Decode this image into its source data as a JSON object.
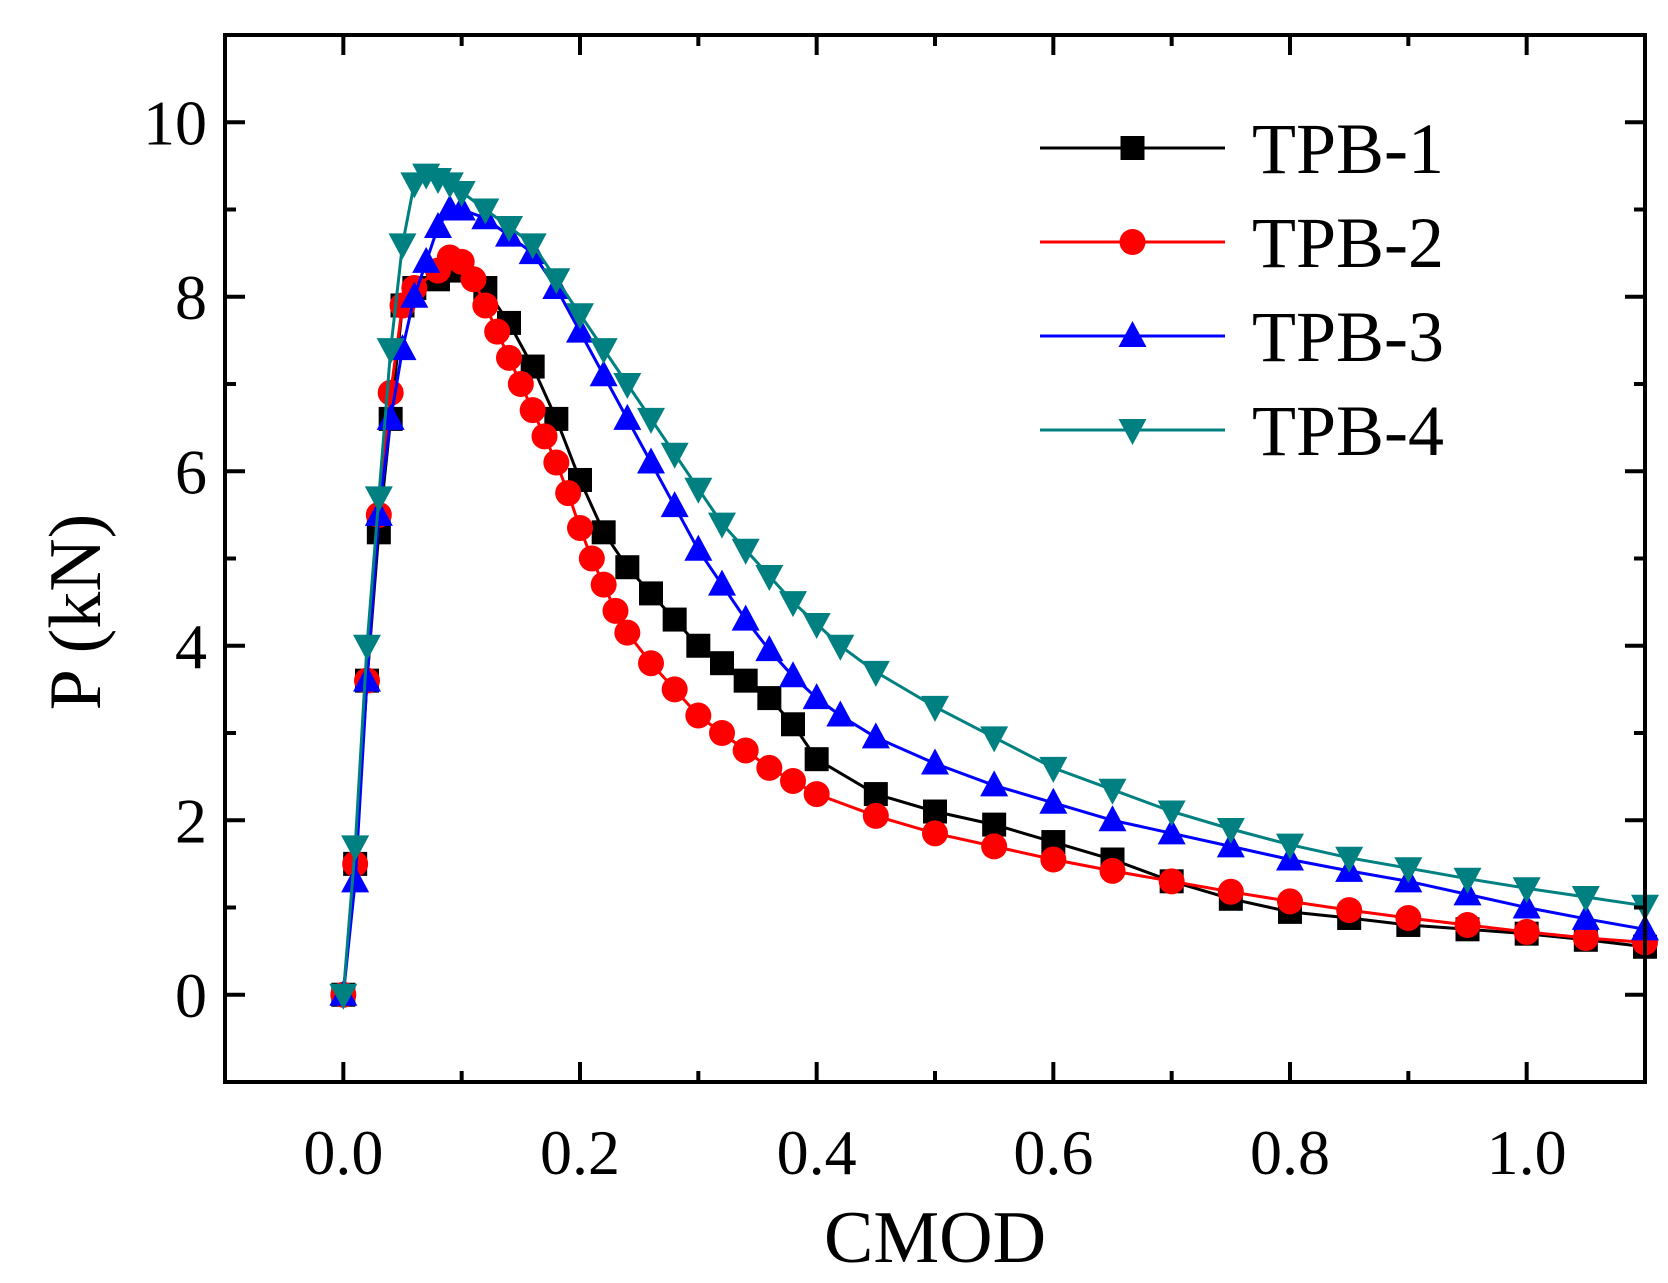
{
  "chart_data": {
    "type": "line",
    "title": "",
    "xlabel": "CMOD",
    "ylabel": "P (kN)",
    "xlim": [
      -0.1,
      1.1
    ],
    "ylim": [
      -1,
      11
    ],
    "xticks": [
      0.0,
      0.2,
      0.4,
      0.6,
      0.8,
      1.0
    ],
    "xtick_labels": [
      "0.0",
      "0.2",
      "0.4",
      "0.6",
      "0.8",
      "1.0"
    ],
    "yticks": [
      0,
      2,
      4,
      6,
      8,
      10
    ],
    "ytick_labels": [
      "0",
      "2",
      "4",
      "6",
      "8",
      "10"
    ],
    "grid": false,
    "legend_position": "top-right",
    "series": [
      {
        "name": "TPB-1",
        "color": "#000000",
        "marker": "square",
        "x": [
          0,
          0.01,
          0.02,
          0.03,
          0.04,
          0.05,
          0.06,
          0.08,
          0.1,
          0.12,
          0.14,
          0.16,
          0.18,
          0.2,
          0.22,
          0.24,
          0.26,
          0.28,
          0.3,
          0.32,
          0.34,
          0.36,
          0.38,
          0.4,
          0.45,
          0.5,
          0.55,
          0.6,
          0.65,
          0.7,
          0.75,
          0.8,
          0.85,
          0.9,
          0.95,
          1.0,
          1.05,
          1.1
        ],
        "y": [
          0,
          1.5,
          3.6,
          5.3,
          6.6,
          7.9,
          8.1,
          8.2,
          8.3,
          8.1,
          7.7,
          7.2,
          6.6,
          5.9,
          5.3,
          4.9,
          4.6,
          4.3,
          4.0,
          3.8,
          3.6,
          3.4,
          3.1,
          2.7,
          2.3,
          2.1,
          1.95,
          1.75,
          1.55,
          1.3,
          1.1,
          0.95,
          0.88,
          0.8,
          0.75,
          0.7,
          0.63,
          0.55
        ]
      },
      {
        "name": "TPB-2",
        "color": "#ff0000",
        "marker": "circle",
        "x": [
          0,
          0.01,
          0.02,
          0.03,
          0.04,
          0.05,
          0.06,
          0.08,
          0.09,
          0.1,
          0.11,
          0.12,
          0.13,
          0.14,
          0.15,
          0.16,
          0.17,
          0.18,
          0.19,
          0.2,
          0.21,
          0.22,
          0.23,
          0.24,
          0.26,
          0.28,
          0.3,
          0.32,
          0.34,
          0.36,
          0.38,
          0.4,
          0.45,
          0.5,
          0.55,
          0.6,
          0.65,
          0.7,
          0.75,
          0.8,
          0.85,
          0.9,
          0.95,
          1.0,
          1.05,
          1.1
        ],
        "y": [
          0,
          1.5,
          3.6,
          5.5,
          6.9,
          7.9,
          8.1,
          8.3,
          8.45,
          8.4,
          8.2,
          7.9,
          7.6,
          7.3,
          7.0,
          6.7,
          6.4,
          6.1,
          5.75,
          5.35,
          5.0,
          4.7,
          4.4,
          4.15,
          3.8,
          3.5,
          3.2,
          3.0,
          2.8,
          2.6,
          2.45,
          2.3,
          2.05,
          1.85,
          1.7,
          1.55,
          1.42,
          1.3,
          1.18,
          1.07,
          0.97,
          0.88,
          0.8,
          0.72,
          0.65,
          0.6
        ]
      },
      {
        "name": "TPB-3",
        "color": "#0000ff",
        "marker": "triangle-up",
        "x": [
          0,
          0.01,
          0.02,
          0.03,
          0.04,
          0.05,
          0.06,
          0.07,
          0.08,
          0.09,
          0.1,
          0.12,
          0.14,
          0.16,
          0.18,
          0.2,
          0.22,
          0.24,
          0.26,
          0.28,
          0.3,
          0.32,
          0.34,
          0.36,
          0.38,
          0.4,
          0.42,
          0.45,
          0.5,
          0.55,
          0.6,
          0.65,
          0.7,
          0.75,
          0.8,
          0.85,
          0.9,
          0.95,
          1.0,
          1.05,
          1.1
        ],
        "y": [
          0,
          1.3,
          3.6,
          5.5,
          6.6,
          7.4,
          8.0,
          8.4,
          8.8,
          9.0,
          9.0,
          8.9,
          8.7,
          8.5,
          8.1,
          7.6,
          7.1,
          6.6,
          6.1,
          5.6,
          5.1,
          4.7,
          4.3,
          3.95,
          3.65,
          3.4,
          3.2,
          2.95,
          2.65,
          2.4,
          2.2,
          2.0,
          1.85,
          1.7,
          1.55,
          1.42,
          1.3,
          1.15,
          1.0,
          0.87,
          0.75
        ]
      },
      {
        "name": "TPB-4",
        "color": "#008080",
        "marker": "triangle-down",
        "x": [
          0,
          0.01,
          0.02,
          0.03,
          0.04,
          0.05,
          0.06,
          0.07,
          0.08,
          0.09,
          0.1,
          0.12,
          0.14,
          0.16,
          0.18,
          0.2,
          0.22,
          0.24,
          0.26,
          0.28,
          0.3,
          0.32,
          0.34,
          0.36,
          0.38,
          0.4,
          0.42,
          0.45,
          0.5,
          0.55,
          0.6,
          0.65,
          0.7,
          0.75,
          0.8,
          0.85,
          0.9,
          0.95,
          1.0,
          1.05,
          1.1
        ],
        "y": [
          0,
          1.7,
          4.0,
          5.7,
          7.4,
          8.6,
          9.3,
          9.4,
          9.35,
          9.3,
          9.2,
          9.0,
          8.8,
          8.6,
          8.2,
          7.8,
          7.4,
          7.0,
          6.6,
          6.2,
          5.8,
          5.4,
          5.1,
          4.8,
          4.5,
          4.25,
          4.0,
          3.7,
          3.3,
          2.95,
          2.6,
          2.35,
          2.1,
          1.9,
          1.72,
          1.57,
          1.45,
          1.33,
          1.22,
          1.12,
          1.02
        ]
      }
    ]
  }
}
